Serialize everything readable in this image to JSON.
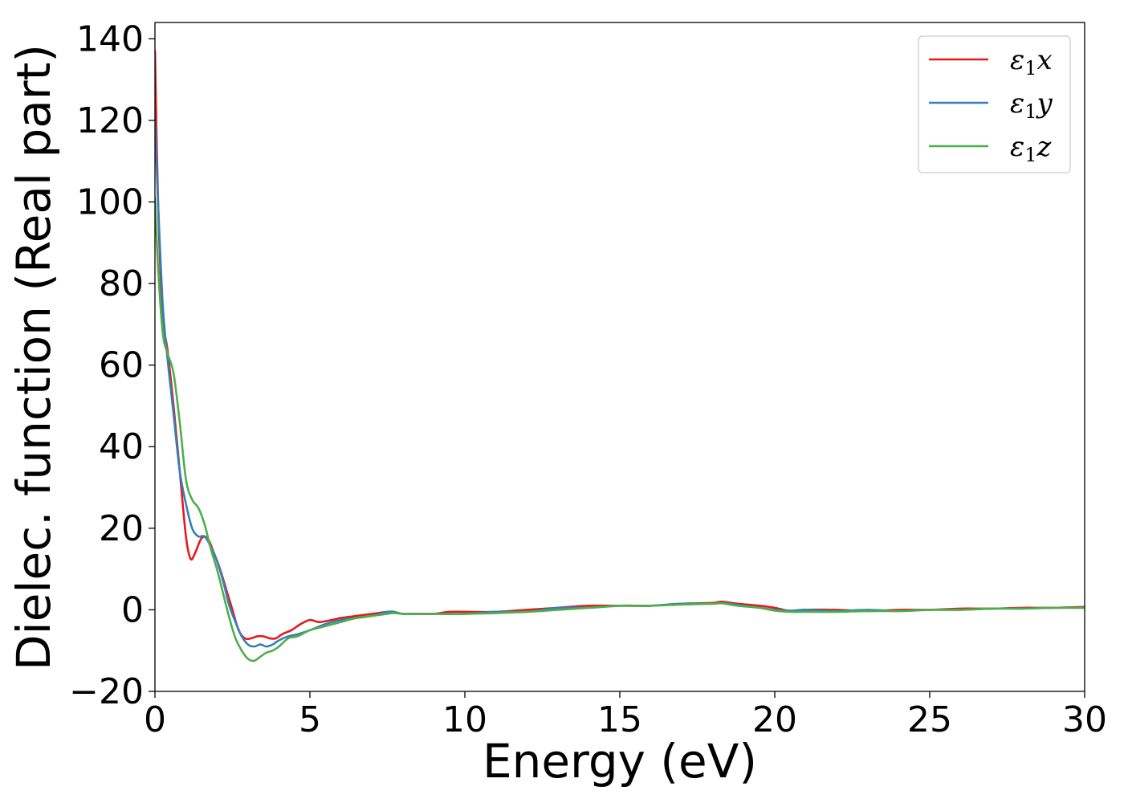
{
  "chart_data": {
    "type": "line",
    "title": "",
    "xlabel": "Energy (eV)",
    "ylabel": "Dielec. function (Real part)",
    "xlim": [
      0,
      30
    ],
    "ylim": [
      -20,
      144
    ],
    "xticks": [
      0,
      5,
      10,
      15,
      20,
      25,
      30
    ],
    "xtick_labels": [
      "0",
      "5",
      "10",
      "15",
      "20",
      "25",
      "30"
    ],
    "yticks": [
      -20,
      0,
      20,
      40,
      60,
      80,
      100,
      120,
      140
    ],
    "ytick_labels": [
      "−20",
      "0",
      "20",
      "40",
      "60",
      "80",
      "100",
      "120",
      "140"
    ],
    "grid": false,
    "legend_position": "top-right",
    "series": [
      {
        "name": "ε1x",
        "legend_main": "ε",
        "legend_sub": "1",
        "legend_var": "x",
        "color": "#e41a1c",
        "x": [
          0,
          0.1,
          0.25,
          0.4,
          0.6,
          0.8,
          1.0,
          1.15,
          1.3,
          1.5,
          1.7,
          1.9,
          2.1,
          2.3,
          2.5,
          2.7,
          2.9,
          3.1,
          3.3,
          3.5,
          3.7,
          3.9,
          4.1,
          4.4,
          4.7,
          5.0,
          5.3,
          5.7,
          6.0,
          6.5,
          7.0,
          7.5,
          7.7,
          8.0,
          8.5,
          9.0,
          9.5,
          10,
          11,
          12,
          13,
          14,
          15,
          16,
          17,
          18,
          18.3,
          18.8,
          19.5,
          20,
          20.5,
          21,
          22,
          23,
          24,
          25,
          26,
          27,
          28,
          29,
          30
        ],
        "y": [
          137,
          100,
          72,
          64,
          50,
          34,
          18,
          12.5,
          14,
          17.5,
          17.5,
          14,
          10,
          5,
          0,
          -5,
          -7,
          -7,
          -6.5,
          -6.5,
          -7,
          -7,
          -6,
          -5,
          -3.5,
          -2.5,
          -3,
          -2.5,
          -2,
          -1.5,
          -1,
          -0.5,
          -0.5,
          -1,
          -1,
          -1,
          -0.5,
          -0.5,
          -0.5,
          0,
          0.5,
          1,
          1,
          1,
          1.5,
          1.7,
          2,
          1.5,
          1,
          0.5,
          -0.3,
          0,
          0,
          -0.3,
          0,
          0,
          0.3,
          0.3,
          0.5,
          0.5,
          0.7
        ]
      },
      {
        "name": "ε1y",
        "legend_main": "ε",
        "legend_sub": "1",
        "legend_var": "y",
        "color": "#377eb8",
        "x": [
          0,
          0.1,
          0.25,
          0.4,
          0.6,
          0.8,
          1.0,
          1.2,
          1.4,
          1.6,
          1.8,
          2.0,
          2.2,
          2.4,
          2.6,
          2.8,
          3.0,
          3.2,
          3.4,
          3.6,
          3.8,
          4.0,
          4.3,
          4.6,
          5.0,
          5.5,
          6.0,
          6.5,
          7.0,
          7.5,
          7.7,
          8.0,
          8.5,
          9.0,
          10,
          11,
          12,
          13,
          14,
          15,
          16,
          17,
          18,
          18.3,
          18.8,
          19.5,
          20,
          20.5,
          21,
          22,
          23,
          24,
          25,
          26,
          27,
          28,
          29,
          30
        ],
        "y": [
          120,
          100,
          75,
          62,
          48,
          34,
          26,
          20,
          18,
          18,
          15.5,
          12,
          7,
          1,
          -3,
          -6.5,
          -8.5,
          -9,
          -8.5,
          -9,
          -8.5,
          -7.5,
          -6.5,
          -6,
          -5,
          -3.5,
          -2.5,
          -2,
          -1.5,
          -0.5,
          -0.5,
          -1,
          -1,
          -1,
          -1,
          -0.5,
          -0.5,
          0.5,
          0.5,
          1,
          1,
          1.5,
          1.5,
          1.7,
          1.2,
          0.5,
          0,
          -0.2,
          0,
          -0.3,
          0,
          -0.3,
          0,
          0,
          0.3,
          0.3,
          0.5,
          0.5
        ]
      },
      {
        "name": "ε1z",
        "legend_main": "ε",
        "legend_sub": "1",
        "legend_var": "z",
        "color": "#4daf4a",
        "x": [
          0,
          0.1,
          0.25,
          0.4,
          0.6,
          0.8,
          1.0,
          1.2,
          1.4,
          1.6,
          1.8,
          2.0,
          2.2,
          2.4,
          2.6,
          2.8,
          3.0,
          3.2,
          3.4,
          3.6,
          3.8,
          4.0,
          4.3,
          4.6,
          5.0,
          5.5,
          6.0,
          6.5,
          7.0,
          7.5,
          7.7,
          8.0,
          8.5,
          9.0,
          10,
          11,
          12,
          13,
          14,
          15,
          16,
          17,
          18,
          18.3,
          18.8,
          19.5,
          20,
          20.5,
          21,
          22,
          23,
          24,
          25,
          26,
          27,
          28,
          29,
          30
        ],
        "y": [
          101,
          84,
          68,
          63,
          58,
          46,
          32,
          27,
          25,
          21,
          15,
          10,
          4,
          -2,
          -7,
          -10,
          -12,
          -12.5,
          -11.5,
          -10.5,
          -10,
          -9,
          -7,
          -6.5,
          -5,
          -4,
          -3,
          -2,
          -1.5,
          -1,
          -0.8,
          -1,
          -1,
          -1,
          -1,
          -0.8,
          -0.5,
          0,
          0.5,
          1,
          1,
          1.3,
          1.5,
          1.6,
          1,
          0.5,
          -0.2,
          -0.5,
          -0.5,
          -0.5,
          -0.3,
          -0.3,
          0,
          0,
          0.3,
          0.3,
          0.5,
          0.5
        ]
      }
    ]
  }
}
